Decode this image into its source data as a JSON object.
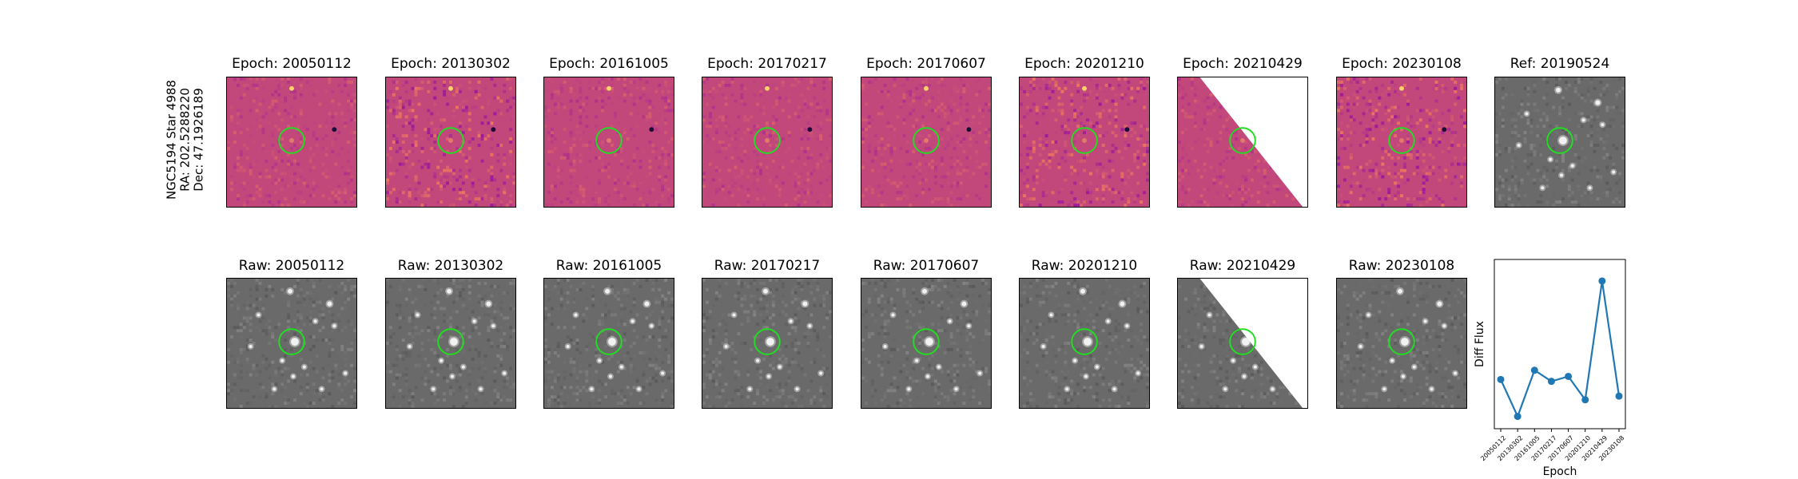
{
  "star_label": {
    "line1": "NGC5194 Star 4988",
    "line2": "RA: 202.5288220",
    "line3": "Dec: 47.1926189"
  },
  "difference_row": [
    {
      "title": "Epoch: 20050112"
    },
    {
      "title": "Epoch: 20130302"
    },
    {
      "title": "Epoch: 20161005"
    },
    {
      "title": "Epoch: 20170217"
    },
    {
      "title": "Epoch: 20170607"
    },
    {
      "title": "Epoch: 20201210"
    },
    {
      "title": "Epoch: 20210429"
    },
    {
      "title": "Epoch: 20230108"
    },
    {
      "title": "Ref: 20190524"
    }
  ],
  "raw_row": [
    {
      "title": "Raw: 20050112"
    },
    {
      "title": "Raw: 20130302"
    },
    {
      "title": "Raw: 20161005"
    },
    {
      "title": "Raw: 20170217"
    },
    {
      "title": "Raw: 20170607"
    },
    {
      "title": "Raw: 20201210"
    },
    {
      "title": "Raw: 20210429"
    },
    {
      "title": "Raw: 20230108"
    }
  ],
  "colors": {
    "marker_circle": "#22dd22",
    "diff_background": "#c2487c",
    "raw_background": "#6a6a6a",
    "series_line": "#1f77b4"
  },
  "chart_data": {
    "type": "line",
    "title": "",
    "xlabel": "Epoch",
    "ylabel": "Diff Flux",
    "x": [
      "20050112",
      "20130302",
      "20161005",
      "20170217",
      "20170607",
      "20201210",
      "20210429",
      "20230108"
    ],
    "series": [
      {
        "values": [
          0.25,
          -0.35,
          0.4,
          0.22,
          0.3,
          -0.08,
          1.85,
          -0.02
        ]
      }
    ],
    "ylim": [
      -0.55,
      2.2
    ],
    "grid": false,
    "y_tick_labels_shown": false
  }
}
